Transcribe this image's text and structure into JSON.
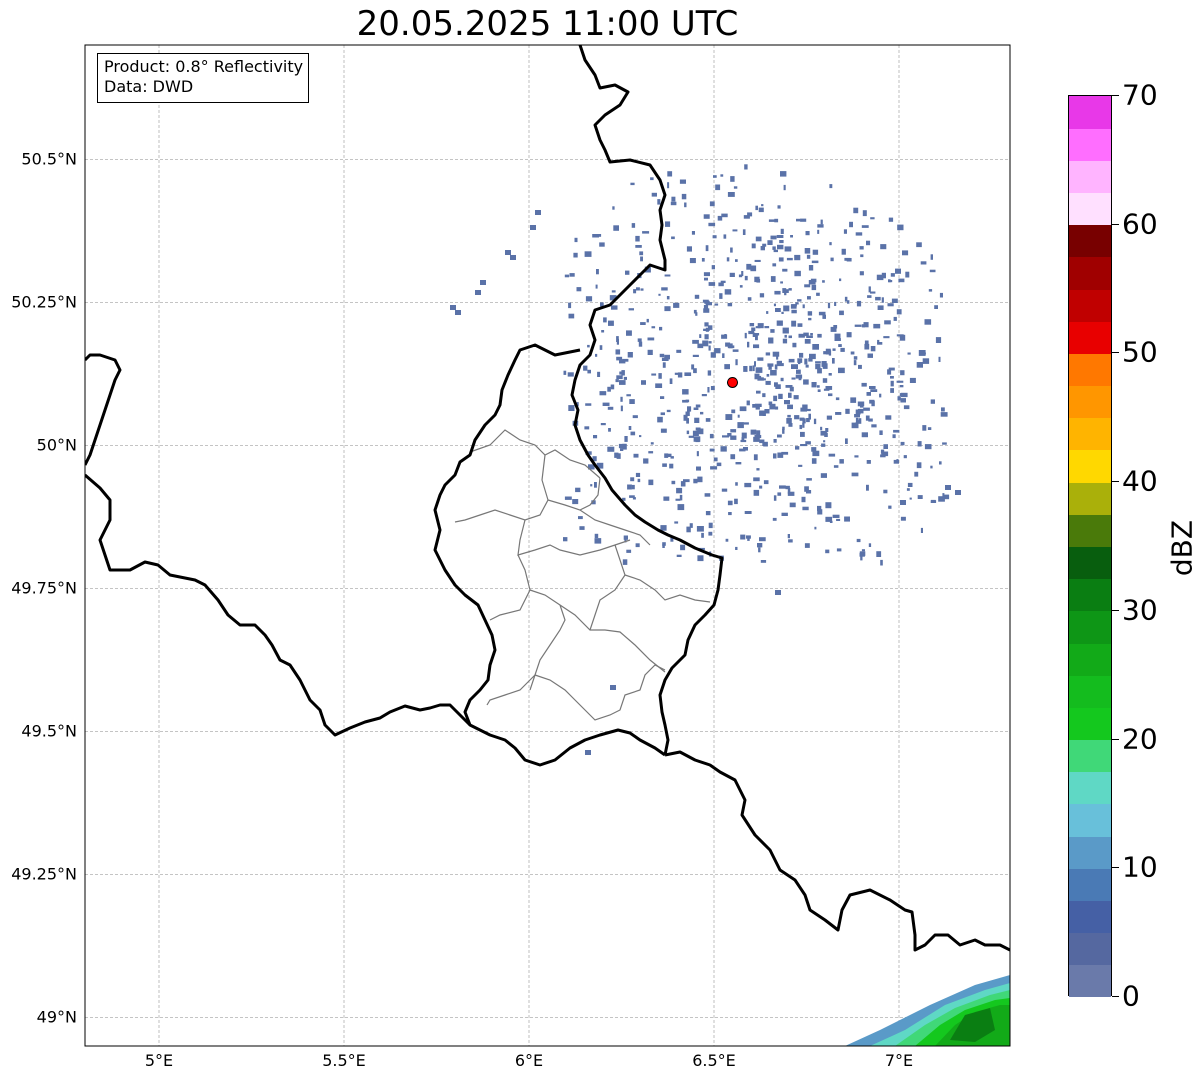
{
  "title": "20.05.2025 11:00 UTC",
  "info": {
    "product": "Product: 0.8° Reflectivity",
    "data": "Data: DWD"
  },
  "map": {
    "lon_range": [
      4.8,
      7.3
    ],
    "lat_range": [
      48.95,
      50.7
    ],
    "x_ticks": [
      {
        "value": 5.0,
        "label": "5°E"
      },
      {
        "value": 5.5,
        "label": "5.5°E"
      },
      {
        "value": 6.0,
        "label": "6°E"
      },
      {
        "value": 6.5,
        "label": "6.5°E"
      },
      {
        "value": 7.0,
        "label": "7°E"
      }
    ],
    "y_ticks": [
      {
        "value": 49.0,
        "label": "49°N"
      },
      {
        "value": 49.25,
        "label": "49.25°N"
      },
      {
        "value": 49.5,
        "label": "49.5°N"
      },
      {
        "value": 49.75,
        "label": "49.75°N"
      },
      {
        "value": 50.0,
        "label": "50°N"
      },
      {
        "value": 50.25,
        "label": "50.25°N"
      },
      {
        "value": 50.5,
        "label": "50.5°N"
      }
    ],
    "gridlines": true,
    "radar_site": {
      "lon": 6.55,
      "lat": 50.11,
      "color": "#ff0000"
    },
    "echo_color": "#5a72a8"
  },
  "colorbar": {
    "label": "dBZ",
    "min": 0,
    "max": 70,
    "ticks": [
      0,
      10,
      20,
      30,
      40,
      50,
      60,
      70
    ],
    "colors": [
      "#6a7aaa",
      "#5568a0",
      "#4560a5",
      "#4a7ab5",
      "#5a9ac8",
      "#68c0da",
      "#5fd8c5",
      "#40d878",
      "#14c81e",
      "#14bc1e",
      "#12aa18",
      "#0e9616",
      "#0a7e12",
      "#085e0e",
      "#4a7a0a",
      "#aab00a",
      "#ffd800",
      "#ffb400",
      "#ff9600",
      "#ff7800",
      "#e80000",
      "#c00000",
      "#a00000",
      "#780000",
      "#ffe0ff",
      "#ffb4ff",
      "#ff6eff",
      "#e838e8"
    ]
  }
}
